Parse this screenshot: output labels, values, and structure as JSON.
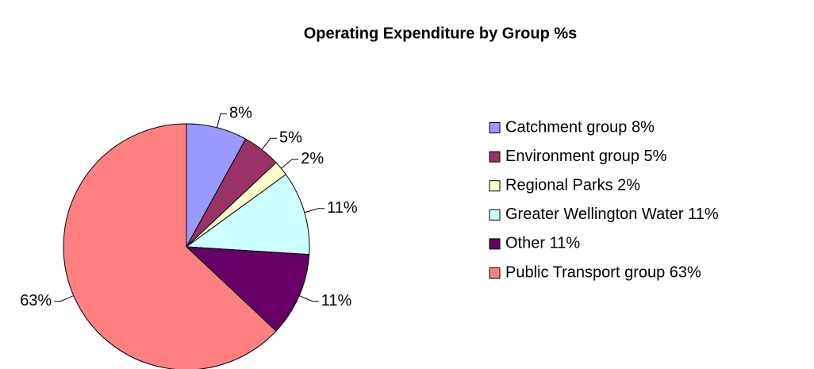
{
  "chart_data": {
    "type": "pie",
    "title": "Operating Expenditure by Group %s",
    "categories": [
      "Catchment group 8%",
      "Environment group 5%",
      "Regional Parks 2%",
      "Greater Wellington Water 11%",
      "Other 11%",
      "Public Transport group 63%"
    ],
    "values": [
      8,
      5,
      2,
      11,
      11,
      63
    ],
    "value_labels": [
      "8%",
      "5%",
      "2%",
      "11%",
      "11%",
      "63%"
    ],
    "colors": [
      "#9999ff",
      "#993366",
      "#ffffcc",
      "#ccffff",
      "#660066",
      "#ff8080"
    ],
    "legend": "right"
  }
}
